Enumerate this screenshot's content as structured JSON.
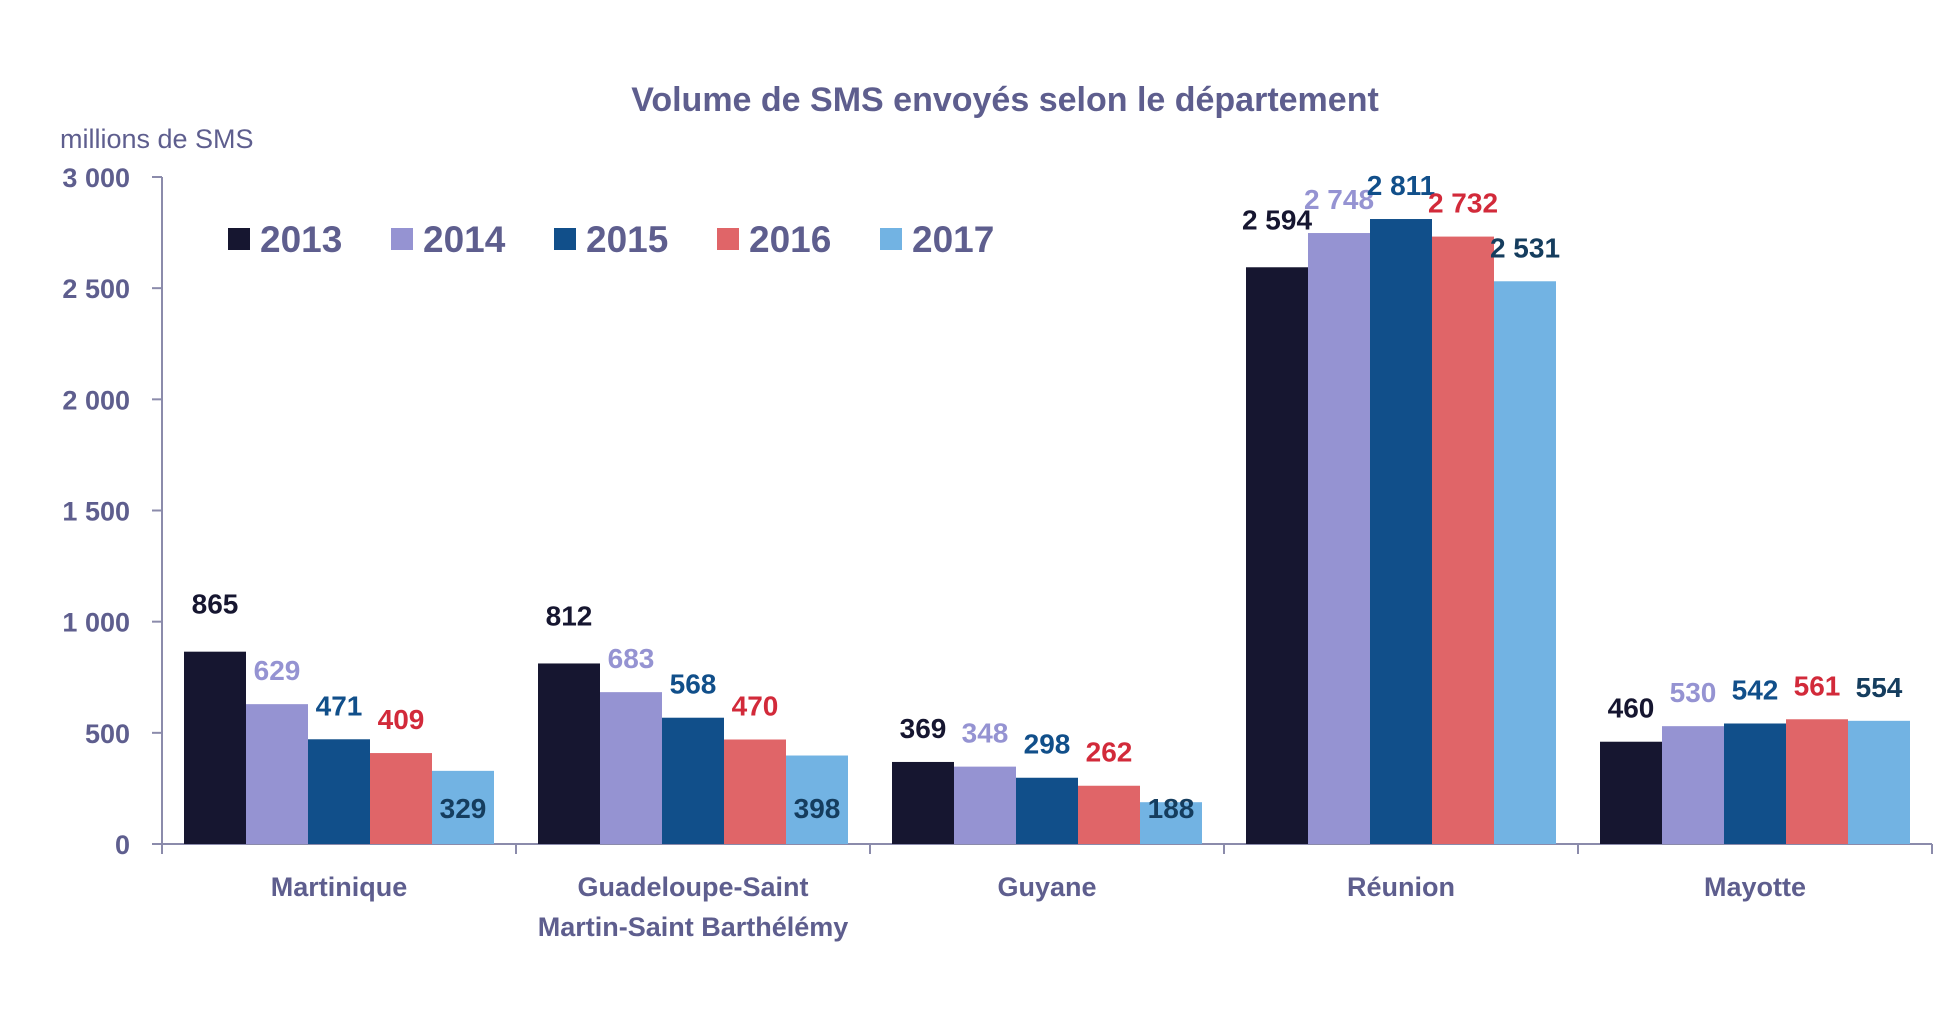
{
  "chart_data": {
    "type": "bar",
    "title": "Volume de SMS envoyés selon le département",
    "unit_label": "millions de SMS",
    "categories": [
      [
        "Martinique"
      ],
      [
        "Guadeloupe-Saint",
        "Martin-Saint Barthélémy"
      ],
      [
        "Guyane"
      ],
      [
        "Réunion"
      ],
      [
        "Mayotte"
      ]
    ],
    "series": [
      {
        "name": "2013",
        "color": "#161630",
        "label_color": "#161630",
        "values": [
          865,
          812,
          369,
          2594,
          460
        ],
        "labels": [
          "865",
          "812",
          "369",
          "2 594",
          "460"
        ]
      },
      {
        "name": "2014",
        "color": "#9593d2",
        "label_color": "#9593d2",
        "values": [
          629,
          683,
          348,
          2748,
          530
        ],
        "labels": [
          "629",
          "683",
          "348",
          "2 748",
          "530"
        ]
      },
      {
        "name": "2015",
        "color": "#114f8a",
        "label_color": "#114f8a",
        "values": [
          471,
          568,
          298,
          2811,
          542
        ],
        "labels": [
          "471",
          "568",
          "298",
          "2 811",
          "542"
        ]
      },
      {
        "name": "2016",
        "color": "#e06568",
        "label_color": "#d22a3a",
        "values": [
          409,
          470,
          262,
          2732,
          561
        ],
        "labels": [
          "409",
          "470",
          "262",
          "2 732",
          "561"
        ]
      },
      {
        "name": "2017",
        "color": "#72b3e3",
        "label_color": "#153d5e",
        "values": [
          329,
          398,
          188,
          2531,
          554
        ],
        "labels": [
          "329",
          "398",
          "188",
          "2 531",
          "554"
        ]
      }
    ],
    "y_ticks": [
      0,
      500,
      1000,
      1500,
      2000,
      2500,
      3000
    ],
    "y_tick_labels": [
      "0",
      "500",
      "1 000",
      "1 500",
      "2 000",
      "2 500",
      "3 000"
    ],
    "ylim": [
      0,
      3000
    ],
    "grid": false,
    "legend": "top-left"
  }
}
